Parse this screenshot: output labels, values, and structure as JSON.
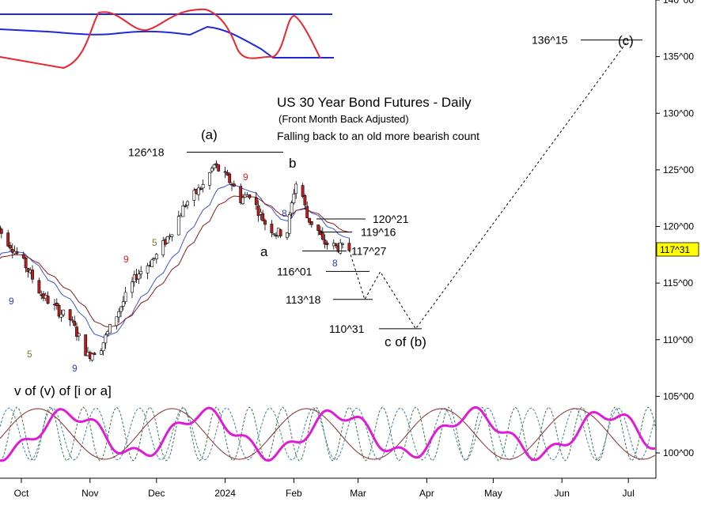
{
  "chart_data": {
    "type": "line",
    "title": "US 30 Year Bond Futures - Daily",
    "subtitle": "(Front Month Back Adjusted)",
    "note": "Falling back to an old more bearish count",
    "y_ticks": [
      "140^00",
      "135^00",
      "130^00",
      "125^00",
      "120^00",
      "115^00",
      "110^00",
      "105^00",
      "100^00"
    ],
    "y_range": [
      98,
      140.5
    ],
    "x_ticks": [
      "Oct",
      "Nov",
      "Dec",
      "2024",
      "Feb",
      "Mar",
      "Apr",
      "May",
      "Jun",
      "Jul"
    ],
    "last_price": "117^31",
    "wave_labels": {
      "a_paren": "(a)",
      "b": "b",
      "a": "a",
      "c_of_b": "c of (b)",
      "c_paren": "(c)",
      "bottom_label": "v of (v) of [i or a]"
    },
    "levels": [
      {
        "label": "126^18",
        "value": 126.56
      },
      {
        "label": "120^21",
        "value": 120.66
      },
      {
        "label": "119^16",
        "value": 119.5
      },
      {
        "label": "117^27",
        "value": 117.84
      },
      {
        "label": "116^01",
        "value": 116.03
      },
      {
        "label": "113^18",
        "value": 113.56
      },
      {
        "label": "110^31",
        "value": 110.97
      },
      {
        "label": "136^15",
        "value": 136.47
      }
    ],
    "count_labels": [
      {
        "text": "9",
        "color": "#2b3bd6"
      },
      {
        "text": "5",
        "color": "#7a7a20"
      },
      {
        "text": "9",
        "color": "#2b3bd6"
      },
      {
        "text": "9",
        "color": "#d62020"
      },
      {
        "text": "5",
        "color": "#7a7a20"
      },
      {
        "text": "9",
        "color": "#d62020"
      },
      {
        "text": "8",
        "color": "#2b3bd6"
      },
      {
        "text": "8",
        "color": "#2b3bd6"
      }
    ],
    "projection": [
      {
        "x": "2024-02-26",
        "y": 117.9
      },
      {
        "x": "2024-03-04",
        "y": 113.56
      },
      {
        "x": "2024-03-11",
        "y": 116.0
      },
      {
        "x": "2024-03-27",
        "y": 110.97
      },
      {
        "x": "2024-07-01",
        "y": 136.47
      }
    ],
    "colors": {
      "up_candle": "#ffffff",
      "down_candle": "#c11c1c",
      "ma_fast": "#3a54d8",
      "ma_slow": "#8b1a1a",
      "upper_band": "#1e2ad8",
      "oscillator": "#e8282e",
      "cycle_composite": "#e01ad6",
      "cycle_green": "#3a7a4a",
      "cycle_blue": "#3f7fb5",
      "cycle_brown": "#8b2a2a",
      "price_tag": "#ffff00"
    }
  }
}
